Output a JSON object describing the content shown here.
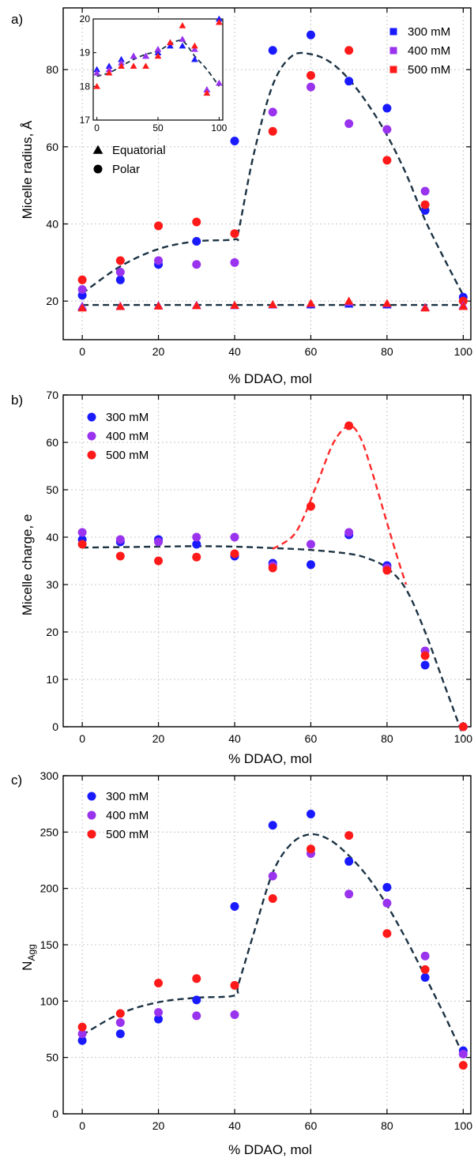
{
  "colors": {
    "s300": "#1a1aff",
    "s400": "#9933ee",
    "s500": "#ff1a1a",
    "fit": "#1c3344",
    "fit_red": "#ff2a2a"
  },
  "chart_data": [
    {
      "panel_label": "a)",
      "type": "scatter",
      "xlabel": "% DDAO, mol",
      "ylabel": "Micelle radius, Å",
      "xlim": [
        -5,
        102
      ],
      "ylim": [
        10,
        96
      ],
      "xticks": [
        0,
        20,
        40,
        60,
        80,
        100
      ],
      "yticks": [
        20,
        40,
        60,
        80
      ],
      "legend": {
        "position": "top-right",
        "marker": "square",
        "entries": [
          "300 mM",
          "400 mM",
          "500 mM"
        ]
      },
      "shape_legend": {
        "position": "upper-left",
        "entries": [
          {
            "marker": "triangle",
            "label": "Equatorial"
          },
          {
            "marker": "circle",
            "label": "Polar"
          }
        ]
      },
      "x": [
        0,
        10,
        20,
        30,
        40,
        50,
        60,
        70,
        80,
        90,
        100
      ],
      "series": [
        {
          "name": "300 mM",
          "marker": "circle",
          "values": [
            21.5,
            25.5,
            29.5,
            35.5,
            61.5,
            85,
            89,
            77,
            70,
            43.5,
            21
          ]
        },
        {
          "name": "400 mM",
          "marker": "circle",
          "values": [
            23,
            27.5,
            30.5,
            29.5,
            30,
            69,
            75.5,
            66,
            64.5,
            48.5,
            null
          ]
        },
        {
          "name": "500 mM",
          "marker": "circle",
          "values": [
            25.5,
            30.5,
            39.5,
            40.5,
            37.5,
            64,
            78.5,
            85,
            56.5,
            45,
            20
          ]
        },
        {
          "name": "300 mM",
          "marker": "triangle",
          "values": [
            18.5,
            18.6,
            18.8,
            18.9,
            18.9,
            19,
            19,
            19.2,
            19,
            18.3,
            18.8
          ]
        },
        {
          "name": "400 mM",
          "marker": "triangle",
          "values": [
            18.7,
            18.7,
            18.8,
            18.9,
            18.8,
            19,
            19.3,
            19.7,
            19.3,
            18.4,
            18.9
          ]
        },
        {
          "name": "500 mM",
          "marker": "triangle",
          "values": [
            18.2,
            18.6,
            18.7,
            18.8,
            18.9,
            19.1,
            19.4,
            20,
            19.4,
            18.2,
            18.6
          ]
        }
      ],
      "fits": [
        {
          "x": [
            0,
            10,
            20,
            30,
            40,
            41,
            45,
            50,
            55,
            60,
            65,
            70,
            75,
            80,
            85,
            90,
            95,
            100
          ],
          "y": [
            22,
            29,
            33.5,
            35.5,
            36,
            38,
            58,
            76,
            83.5,
            84,
            82,
            77.5,
            71,
            63,
            53,
            41,
            31,
            21.5
          ]
        },
        {
          "x": [
            0,
            100
          ],
          "y": [
            19,
            19
          ]
        }
      ],
      "inset": {
        "xlim": [
          -3,
          103
        ],
        "ylim": [
          17,
          20
        ],
        "xticks": [
          0,
          50,
          100
        ],
        "yticks": [
          17,
          18,
          19,
          20
        ],
        "x": [
          0,
          10,
          20,
          30,
          40,
          50,
          60,
          70,
          80,
          90,
          100
        ],
        "series": [
          {
            "name": "300 mM",
            "marker": "triangle",
            "values": [
              18.5,
              18.6,
              18.8,
              18.9,
              18.9,
              19,
              19.2,
              19.2,
              18.8,
              17.9,
              20
            ]
          },
          {
            "name": "400 mM",
            "marker": "triangle",
            "values": [
              18.4,
              18.5,
              18.7,
              18.9,
              18.9,
              19.1,
              19.3,
              19.4,
              19.1,
              17.9,
              18.1
            ]
          },
          {
            "name": "500 mM",
            "marker": "triangle",
            "values": [
              18,
              18.4,
              18.6,
              18.6,
              18.6,
              18.9,
              19.3,
              19.8,
              19.2,
              17.8,
              19.9
            ]
          }
        ],
        "fit": {
          "x": [
            0,
            10,
            20,
            30,
            40,
            50,
            60,
            70,
            80,
            90,
            100
          ],
          "y": [
            18.3,
            18.4,
            18.6,
            18.8,
            18.95,
            19.05,
            19.25,
            19.35,
            18.9,
            18.5,
            18.0
          ]
        }
      }
    },
    {
      "panel_label": "b)",
      "type": "scatter",
      "xlabel": "% DDAO, mol",
      "ylabel": "Micelle charge, e",
      "xlim": [
        -5,
        102
      ],
      "ylim": [
        0,
        70
      ],
      "xticks": [
        0,
        20,
        40,
        60,
        80,
        100
      ],
      "yticks": [
        0,
        10,
        20,
        30,
        40,
        50,
        60,
        70
      ],
      "legend": {
        "position": "top-left",
        "marker": "circle",
        "entries": [
          "300 mM",
          "400 mM",
          "500 mM"
        ]
      },
      "x": [
        0,
        10,
        20,
        30,
        40,
        50,
        60,
        70,
        80,
        90,
        100
      ],
      "series": [
        {
          "name": "300 mM",
          "marker": "circle",
          "values": [
            39.5,
            39,
            39.5,
            38.5,
            36,
            34.5,
            34.2,
            40.5,
            34,
            13,
            0
          ]
        },
        {
          "name": "400 mM",
          "marker": "circle",
          "values": [
            41,
            39.5,
            39,
            40,
            40,
            34,
            38.5,
            41,
            33.5,
            16,
            0
          ]
        },
        {
          "name": "500 mM",
          "marker": "circle",
          "values": [
            38.5,
            36,
            35,
            35.8,
            36.5,
            33.5,
            46.5,
            63.5,
            33,
            15,
            0
          ]
        }
      ],
      "fits": [
        {
          "color": "dark",
          "x": [
            0,
            10,
            20,
            30,
            40,
            50,
            60,
            70,
            75,
            80,
            85,
            90,
            95,
            100
          ],
          "y": [
            37.8,
            37.9,
            38,
            38.1,
            38,
            37.7,
            37.3,
            36.5,
            35.5,
            33.5,
            29,
            20,
            9,
            -2
          ]
        },
        {
          "color": "red",
          "x": [
            50,
            55,
            58,
            62,
            66,
            70,
            73,
            76,
            80,
            83,
            85
          ],
          "y": [
            37.5,
            40,
            44,
            52,
            60,
            63.5,
            61,
            54,
            43,
            35,
            30
          ]
        }
      ]
    },
    {
      "panel_label": "c)",
      "type": "scatter",
      "xlabel": "% DDAO, mol",
      "ylabel": "N",
      "ylabel_sub": "Agg",
      "xlim": [
        -5,
        102
      ],
      "ylim": [
        0,
        300
      ],
      "xticks": [
        0,
        20,
        40,
        60,
        80,
        100
      ],
      "yticks": [
        0,
        50,
        100,
        150,
        200,
        250,
        300
      ],
      "legend": {
        "position": "top-left",
        "marker": "circle",
        "entries": [
          "300 mM",
          "400 mM",
          "500 mM"
        ]
      },
      "x": [
        0,
        10,
        20,
        30,
        40,
        50,
        60,
        70,
        80,
        90,
        100
      ],
      "series": [
        {
          "name": "300 mM",
          "marker": "circle",
          "values": [
            65,
            71,
            84,
            101,
            184,
            256,
            266,
            224,
            201,
            121,
            56
          ]
        },
        {
          "name": "400 mM",
          "marker": "circle",
          "values": [
            71,
            81,
            90,
            87,
            88,
            211,
            231,
            195,
            187,
            140,
            53
          ]
        },
        {
          "name": "500 mM",
          "marker": "circle",
          "values": [
            77,
            89,
            116,
            120,
            114,
            191,
            235,
            247,
            160,
            128,
            43
          ]
        }
      ],
      "fits": [
        {
          "x": [
            0,
            10,
            20,
            30,
            40,
            41,
            45,
            50,
            55,
            60,
            65,
            70,
            75,
            80,
            85,
            90,
            95,
            100
          ],
          "y": [
            70,
            89,
            99,
            103,
            105,
            115,
            160,
            214,
            240,
            248,
            243,
            229,
            210,
            185,
            155,
            122,
            88,
            52
          ]
        }
      ]
    }
  ]
}
